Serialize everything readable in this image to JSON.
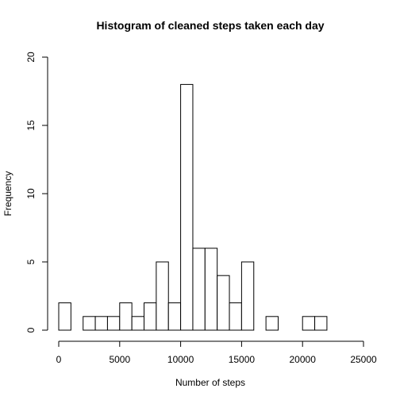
{
  "chart_data": {
    "type": "bar",
    "title": "Histogram of cleaned steps taken each day",
    "xlabel": "Number of steps",
    "ylabel": "Frequency",
    "bin_width": 1000,
    "xlim": [
      0,
      25000
    ],
    "ylim": [
      0,
      20
    ],
    "x_ticks": [
      0,
      5000,
      10000,
      15000,
      20000,
      25000
    ],
    "y_ticks": [
      0,
      5,
      10,
      15,
      20
    ],
    "bins": [
      {
        "start": 0,
        "end": 1000,
        "count": 2
      },
      {
        "start": 1000,
        "end": 2000,
        "count": 0
      },
      {
        "start": 2000,
        "end": 3000,
        "count": 1
      },
      {
        "start": 3000,
        "end": 4000,
        "count": 1
      },
      {
        "start": 4000,
        "end": 5000,
        "count": 1
      },
      {
        "start": 5000,
        "end": 6000,
        "count": 2
      },
      {
        "start": 6000,
        "end": 7000,
        "count": 1
      },
      {
        "start": 7000,
        "end": 8000,
        "count": 2
      },
      {
        "start": 8000,
        "end": 9000,
        "count": 5
      },
      {
        "start": 9000,
        "end": 10000,
        "count": 2
      },
      {
        "start": 10000,
        "end": 11000,
        "count": 18
      },
      {
        "start": 11000,
        "end": 12000,
        "count": 6
      },
      {
        "start": 12000,
        "end": 13000,
        "count": 6
      },
      {
        "start": 13000,
        "end": 14000,
        "count": 4
      },
      {
        "start": 14000,
        "end": 15000,
        "count": 2
      },
      {
        "start": 15000,
        "end": 16000,
        "count": 5
      },
      {
        "start": 16000,
        "end": 17000,
        "count": 0
      },
      {
        "start": 17000,
        "end": 18000,
        "count": 1
      },
      {
        "start": 18000,
        "end": 19000,
        "count": 0
      },
      {
        "start": 19000,
        "end": 20000,
        "count": 0
      },
      {
        "start": 20000,
        "end": 21000,
        "count": 1
      },
      {
        "start": 21000,
        "end": 22000,
        "count": 1
      }
    ],
    "bar_fill": "#ffffff",
    "bar_stroke": "#000000",
    "grid": false,
    "legend": "none"
  }
}
